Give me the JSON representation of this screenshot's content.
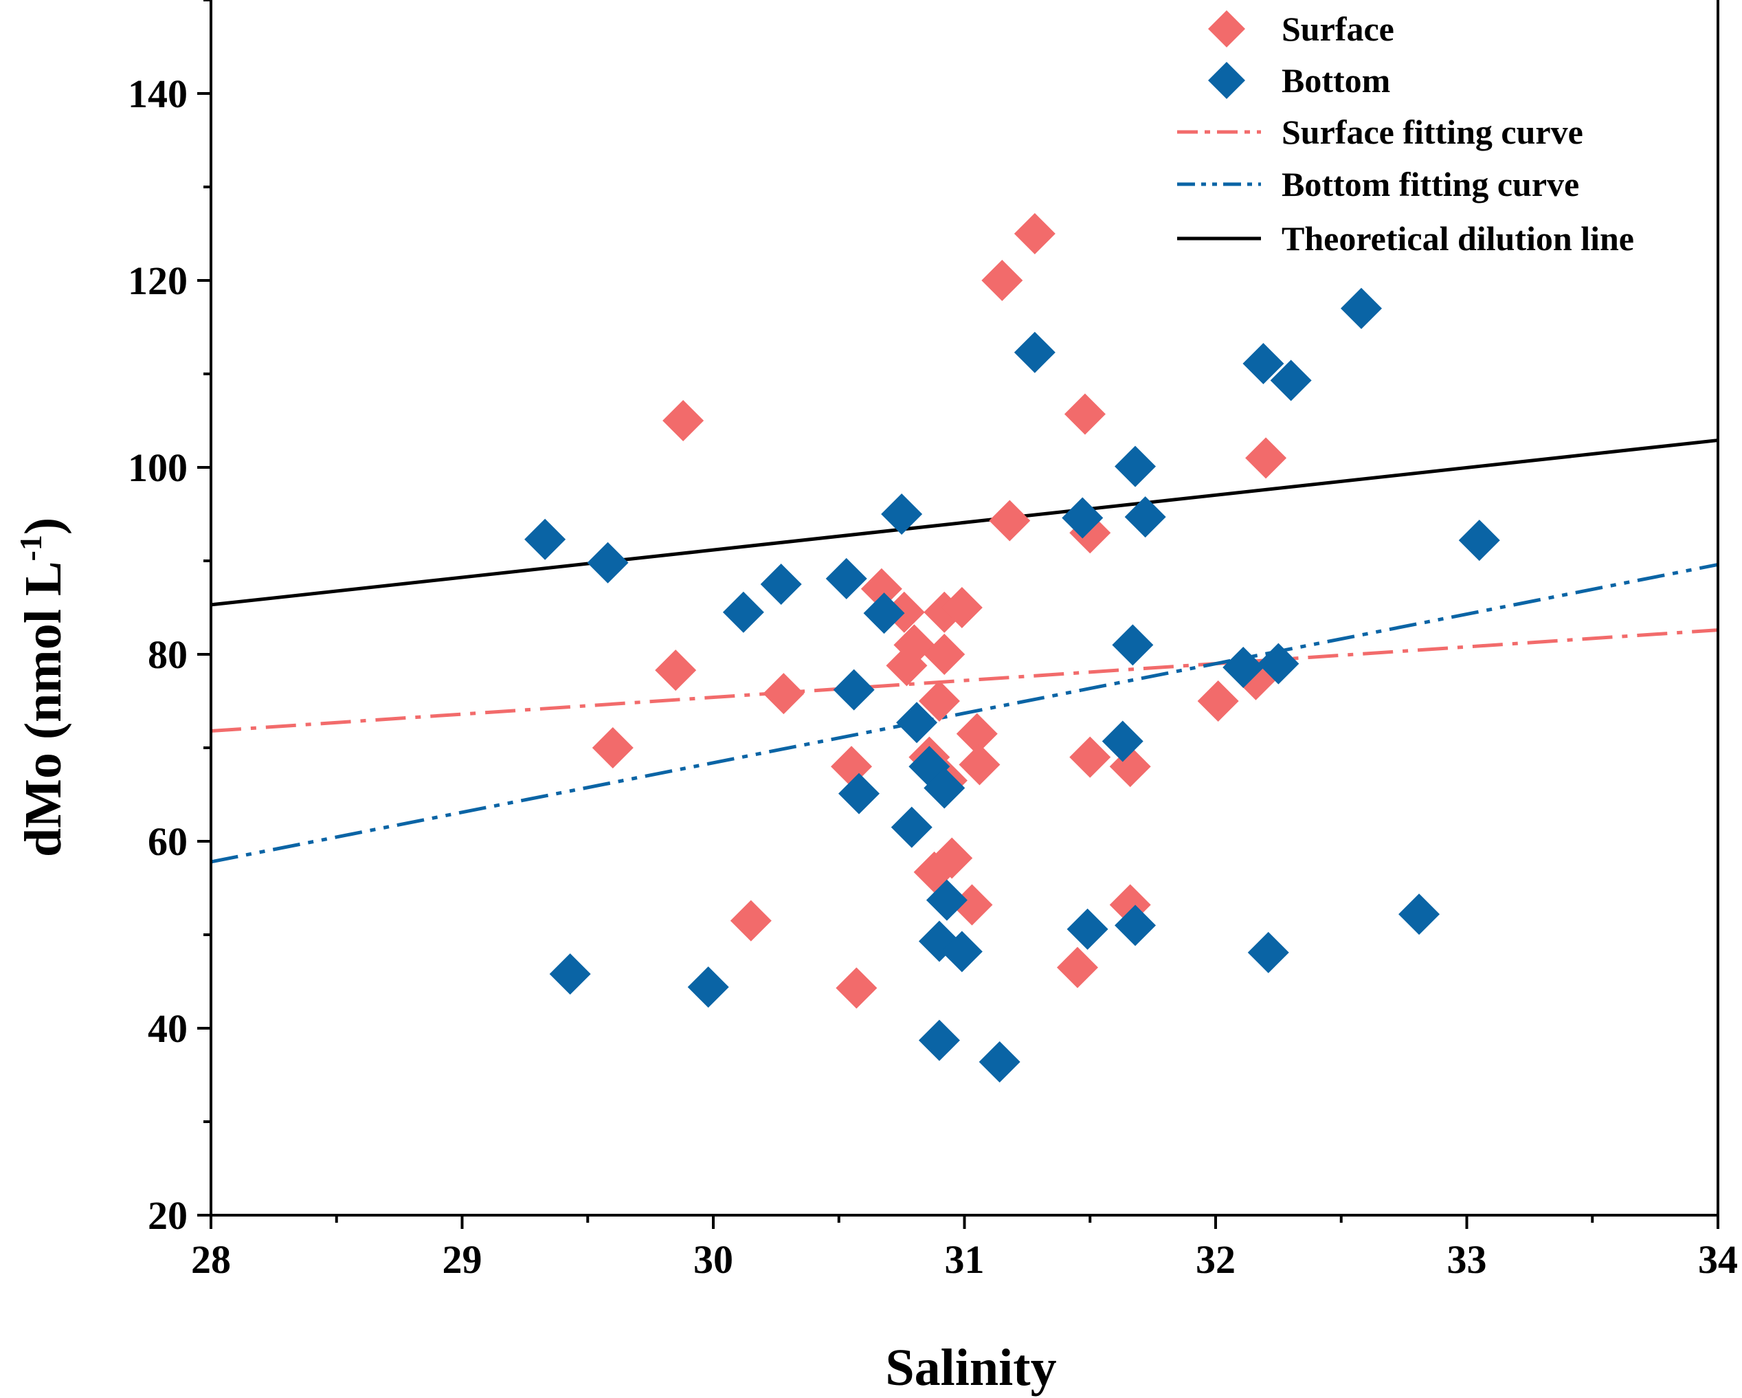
{
  "chart_data": {
    "type": "scatter",
    "title": "",
    "xlabel": "Salinity",
    "ylabel": "dMo (nmol L",
    "ylabel_sup": "-1",
    "ylabel_suffix": ")",
    "xlim": [
      28,
      34
    ],
    "ylim": [
      20,
      150
    ],
    "xticks": [
      28,
      29,
      30,
      31,
      32,
      33,
      34
    ],
    "yticks": [
      20,
      40,
      60,
      80,
      100,
      120,
      140
    ],
    "legend_position": "top-right",
    "colors": {
      "surface": "#F26B6B",
      "bottom": "#0A64A5",
      "dilution": "#000000"
    },
    "series": [
      {
        "name": "Surface",
        "kind": "scatter",
        "marker": "diamond",
        "color": "#F26B6B",
        "points": [
          [
            29.6,
            70
          ],
          [
            29.85,
            78.3
          ],
          [
            29.88,
            105
          ],
          [
            30.15,
            51.5
          ],
          [
            30.28,
            75.8
          ],
          [
            30.55,
            68
          ],
          [
            30.57,
            44.3
          ],
          [
            30.67,
            87
          ],
          [
            30.76,
            84.5
          ],
          [
            30.77,
            78.8
          ],
          [
            30.8,
            81
          ],
          [
            30.86,
            69
          ],
          [
            30.88,
            56.7
          ],
          [
            30.9,
            75
          ],
          [
            30.92,
            80
          ],
          [
            30.92,
            84.5
          ],
          [
            30.93,
            66.5
          ],
          [
            30.95,
            58.2
          ],
          [
            30.99,
            85
          ],
          [
            31.03,
            53.2
          ],
          [
            31.05,
            71.5
          ],
          [
            31.06,
            68.2
          ],
          [
            31.15,
            120
          ],
          [
            31.18,
            94.3
          ],
          [
            31.28,
            125
          ],
          [
            31.45,
            46.5
          ],
          [
            31.48,
            105.7
          ],
          [
            31.5,
            93
          ],
          [
            31.5,
            69
          ],
          [
            31.66,
            68
          ],
          [
            31.66,
            53.2
          ],
          [
            32.01,
            75
          ],
          [
            32.16,
            77.3
          ],
          [
            32.2,
            101
          ]
        ]
      },
      {
        "name": "Bottom",
        "kind": "scatter",
        "marker": "diamond",
        "color": "#0A64A5",
        "points": [
          [
            29.33,
            92.3
          ],
          [
            29.43,
            45.8
          ],
          [
            29.58,
            89.8
          ],
          [
            29.98,
            44.4
          ],
          [
            30.12,
            84.5
          ],
          [
            30.27,
            87.5
          ],
          [
            30.53,
            88.1
          ],
          [
            30.56,
            76.2
          ],
          [
            30.58,
            65.1
          ],
          [
            30.68,
            84.4
          ],
          [
            30.75,
            95
          ],
          [
            30.79,
            61.5
          ],
          [
            30.81,
            72.7
          ],
          [
            30.86,
            68
          ],
          [
            30.9,
            38.7
          ],
          [
            30.9,
            49.3
          ],
          [
            30.92,
            65.7
          ],
          [
            30.93,
            53.7
          ],
          [
            30.99,
            48.2
          ],
          [
            31.14,
            36.4
          ],
          [
            31.28,
            112.3
          ],
          [
            31.47,
            94.6
          ],
          [
            31.49,
            50.6
          ],
          [
            31.63,
            70.7
          ],
          [
            31.67,
            81
          ],
          [
            31.68,
            51
          ],
          [
            31.68,
            100.1
          ],
          [
            31.72,
            94.7
          ],
          [
            32.11,
            78.6
          ],
          [
            32.19,
            111.1
          ],
          [
            32.21,
            48.1
          ],
          [
            32.25,
            79
          ],
          [
            32.3,
            109.3
          ],
          [
            32.58,
            117
          ],
          [
            32.81,
            52.2
          ],
          [
            33.05,
            92.2
          ]
        ]
      },
      {
        "name": "Surface fitting curve",
        "kind": "line",
        "style": "dash-dot",
        "color": "#F26B6B",
        "line": [
          [
            28,
            71.8
          ],
          [
            34,
            82.6
          ]
        ]
      },
      {
        "name": "Bottom fitting curve",
        "kind": "line",
        "style": "dash-dot-dot",
        "color": "#0A64A5",
        "line": [
          [
            28,
            57.8
          ],
          [
            34,
            89.6
          ]
        ]
      },
      {
        "name": "Theoretical dilution line",
        "kind": "line",
        "style": "solid",
        "color": "#000000",
        "line": [
          [
            28,
            85.3
          ],
          [
            34,
            102.9
          ]
        ]
      }
    ],
    "legend": [
      {
        "label": "Surface",
        "series": 0
      },
      {
        "label": "Bottom",
        "series": 1
      },
      {
        "label": "Surface fitting curve",
        "series": 2
      },
      {
        "label": "Bottom fitting curve",
        "series": 3
      },
      {
        "label": "Theoretical dilution line",
        "series": 4
      }
    ]
  }
}
